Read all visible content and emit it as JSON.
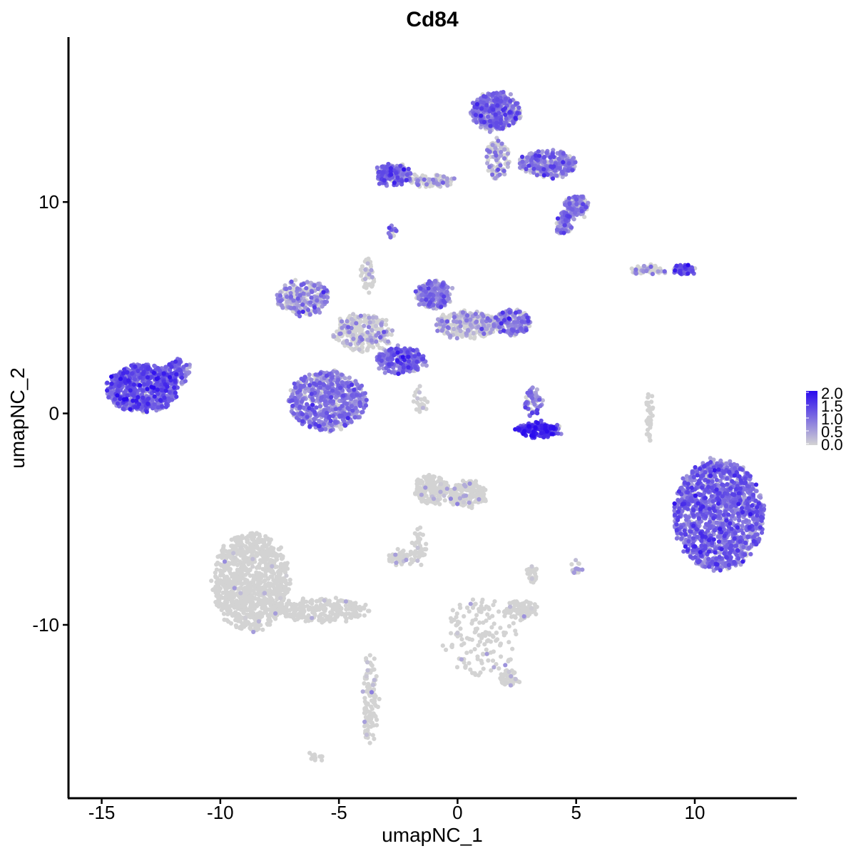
{
  "chart_data": {
    "type": "scatter",
    "title": "Cd84",
    "xlabel": "umapNC_1",
    "ylabel": "umapNC_2",
    "xlim": [
      -16.4,
      14.3
    ],
    "ylim": [
      -18.2,
      17.8
    ],
    "x_ticks": [
      -15,
      -10,
      -5,
      0,
      5,
      10
    ],
    "x_tick_labels": [
      "-15",
      "-10",
      "-5",
      "0",
      "5",
      "10"
    ],
    "y_ticks": [
      -10,
      0,
      10
    ],
    "y_tick_labels": [
      "-10",
      "0",
      "10"
    ],
    "grid": false,
    "legend": {
      "placement": "right",
      "type": "colorbar",
      "range": [
        0,
        2.0
      ],
      "ticks": [
        0.0,
        0.5,
        1.0,
        1.5,
        2.0
      ],
      "tick_labels": [
        "0.0",
        "0.5",
        "1.0",
        "1.5",
        "2.0"
      ],
      "low_color": "#d3d3d3",
      "high_color": "#2a0aee"
    },
    "clusters": [
      {
        "cx": -13.3,
        "cy": 1.2,
        "rx": 1.5,
        "ry": 1.1,
        "n": 700,
        "expr": 1.3
      },
      {
        "cx": -11.8,
        "cy": 2.0,
        "rx": 0.5,
        "ry": 0.6,
        "n": 90,
        "expr": 1.2
      },
      {
        "cx": -6.5,
        "cy": 5.5,
        "rx": 1.1,
        "ry": 0.8,
        "n": 220,
        "expr": 0.85
      },
      {
        "cx": -5.5,
        "cy": 0.6,
        "rx": 1.6,
        "ry": 1.4,
        "n": 650,
        "expr": 1.0
      },
      {
        "cx": -4.0,
        "cy": 3.8,
        "rx": 1.2,
        "ry": 0.9,
        "n": 260,
        "expr": 0.45
      },
      {
        "cx": -3.8,
        "cy": 6.5,
        "rx": 0.25,
        "ry": 0.9,
        "n": 40,
        "expr": 0.2
      },
      {
        "cx": -2.4,
        "cy": 2.5,
        "rx": 1.0,
        "ry": 0.6,
        "n": 240,
        "expr": 1.2
      },
      {
        "cx": -1.0,
        "cy": 5.6,
        "rx": 0.7,
        "ry": 0.7,
        "n": 220,
        "expr": 1.0
      },
      {
        "cx": 0.4,
        "cy": 4.2,
        "rx": 1.4,
        "ry": 0.6,
        "n": 330,
        "expr": 0.5
      },
      {
        "cx": 2.3,
        "cy": 4.3,
        "rx": 0.8,
        "ry": 0.6,
        "n": 180,
        "expr": 0.95
      },
      {
        "cx": -1.6,
        "cy": 0.6,
        "rx": 0.3,
        "ry": 0.8,
        "n": 25,
        "expr": 0.35
      },
      {
        "cx": -2.7,
        "cy": 11.3,
        "rx": 0.7,
        "ry": 0.5,
        "n": 180,
        "expr": 1.1
      },
      {
        "cx": -1.1,
        "cy": 11.0,
        "rx": 1.0,
        "ry": 0.25,
        "n": 90,
        "expr": 0.6
      },
      {
        "cx": 1.6,
        "cy": 14.3,
        "rx": 1.0,
        "ry": 0.9,
        "n": 420,
        "expr": 1.05
      },
      {
        "cx": 1.7,
        "cy": 12.0,
        "rx": 0.5,
        "ry": 0.9,
        "n": 110,
        "expr": 0.6
      },
      {
        "cx": 3.8,
        "cy": 11.8,
        "rx": 1.2,
        "ry": 0.6,
        "n": 300,
        "expr": 0.95
      },
      {
        "cx": 5.0,
        "cy": 9.8,
        "rx": 0.5,
        "ry": 0.5,
        "n": 120,
        "expr": 0.95
      },
      {
        "cx": 4.5,
        "cy": 9.0,
        "rx": 0.3,
        "ry": 0.5,
        "n": 70,
        "expr": 1.0
      },
      {
        "cx": -2.7,
        "cy": 8.6,
        "rx": 0.2,
        "ry": 0.2,
        "n": 18,
        "expr": 1.1
      },
      {
        "cx": 9.5,
        "cy": 6.8,
        "rx": 0.5,
        "ry": 0.2,
        "n": 70,
        "expr": 1.3
      },
      {
        "cx": 8.0,
        "cy": 6.8,
        "rx": 0.8,
        "ry": 0.15,
        "n": 60,
        "expr": 0.5
      },
      {
        "cx": 3.4,
        "cy": -0.8,
        "rx": 0.9,
        "ry": 0.3,
        "n": 200,
        "expr": 1.8
      },
      {
        "cx": 3.2,
        "cy": 0.5,
        "rx": 0.4,
        "ry": 0.6,
        "n": 60,
        "expr": 1.0
      },
      {
        "cx": 8.1,
        "cy": -0.2,
        "rx": 0.12,
        "ry": 1.2,
        "n": 40,
        "expr": 0.2
      },
      {
        "cx": 11.0,
        "cy": -4.8,
        "rx": 1.9,
        "ry": 2.6,
        "n": 1400,
        "expr": 1.15
      },
      {
        "cx": -8.7,
        "cy": -8.0,
        "rx": 1.6,
        "ry": 2.3,
        "n": 900,
        "expr": 0.02
      },
      {
        "cx": -5.8,
        "cy": -9.3,
        "rx": 2.0,
        "ry": 0.55,
        "n": 260,
        "expr": 0.02
      },
      {
        "cx": -3.7,
        "cy": -13.6,
        "rx": 0.3,
        "ry": 2.3,
        "n": 110,
        "expr": 0.1
      },
      {
        "cx": -1.1,
        "cy": -3.6,
        "rx": 0.7,
        "ry": 0.7,
        "n": 180,
        "expr": 0.1
      },
      {
        "cx": 0.4,
        "cy": -3.8,
        "rx": 0.8,
        "ry": 0.6,
        "n": 150,
        "expr": 0.15
      },
      {
        "cx": -1.6,
        "cy": -6.2,
        "rx": 0.25,
        "ry": 0.9,
        "n": 40,
        "expr": 0.1
      },
      {
        "cx": -2.3,
        "cy": -6.8,
        "rx": 0.6,
        "ry": 0.3,
        "n": 60,
        "expr": 0.2
      },
      {
        "cx": 2.7,
        "cy": -9.3,
        "rx": 0.6,
        "ry": 0.4,
        "n": 110,
        "expr": 0.1
      },
      {
        "cx": 3.2,
        "cy": -7.6,
        "rx": 0.25,
        "ry": 0.4,
        "n": 30,
        "expr": 0.05
      },
      {
        "cx": 0.9,
        "cy": -10.6,
        "rx": 1.6,
        "ry": 1.9,
        "n": 150,
        "expr": 0.05
      },
      {
        "cx": 2.2,
        "cy": -12.5,
        "rx": 0.4,
        "ry": 0.3,
        "n": 50,
        "expr": 0.05
      },
      {
        "cx": 5.0,
        "cy": -7.3,
        "rx": 0.2,
        "ry": 0.3,
        "n": 18,
        "expr": 0.5
      },
      {
        "cx": -6.0,
        "cy": -16.3,
        "rx": 0.25,
        "ry": 0.15,
        "n": 12,
        "expr": 0.0
      }
    ]
  }
}
